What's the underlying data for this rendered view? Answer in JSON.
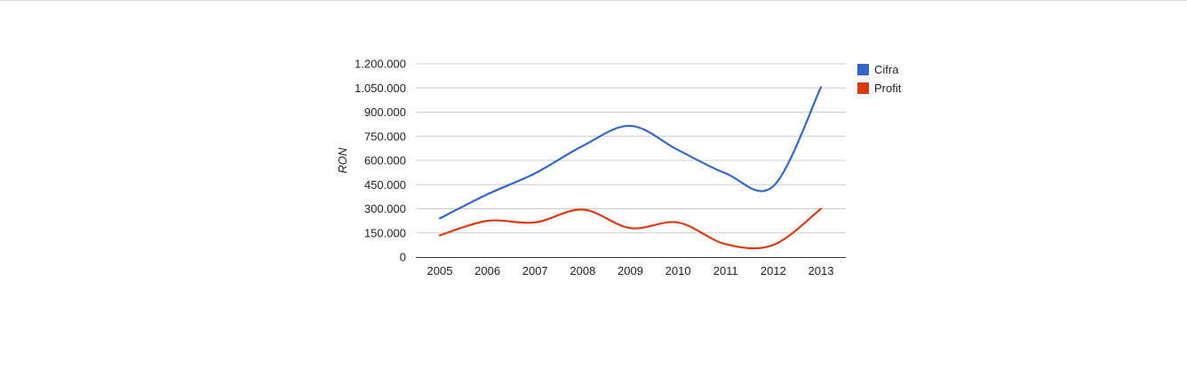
{
  "chart_data": {
    "type": "line",
    "title": "",
    "xlabel": "",
    "ylabel": "RON",
    "categories": [
      "2005",
      "2006",
      "2007",
      "2008",
      "2009",
      "2010",
      "2011",
      "2012",
      "2013"
    ],
    "ylim": [
      0,
      1200000
    ],
    "yticks": [
      0,
      150000,
      300000,
      450000,
      600000,
      750000,
      900000,
      1050000,
      1200000
    ],
    "ytick_labels": [
      "0",
      "150.000",
      "300.000",
      "450.000",
      "600.000",
      "750.000",
      "900.000",
      "1.050.000",
      "1.200.000"
    ],
    "grid": true,
    "legend_position": "right",
    "series": [
      {
        "name": "Cifra",
        "color": "#3366cc",
        "values": [
          240000,
          390000,
          520000,
          690000,
          815000,
          665000,
          520000,
          440000,
          1055000
        ]
      },
      {
        "name": "Profit",
        "color": "#dc3912",
        "values": [
          135000,
          225000,
          215000,
          295000,
          180000,
          215000,
          80000,
          75000,
          300000
        ]
      }
    ]
  }
}
